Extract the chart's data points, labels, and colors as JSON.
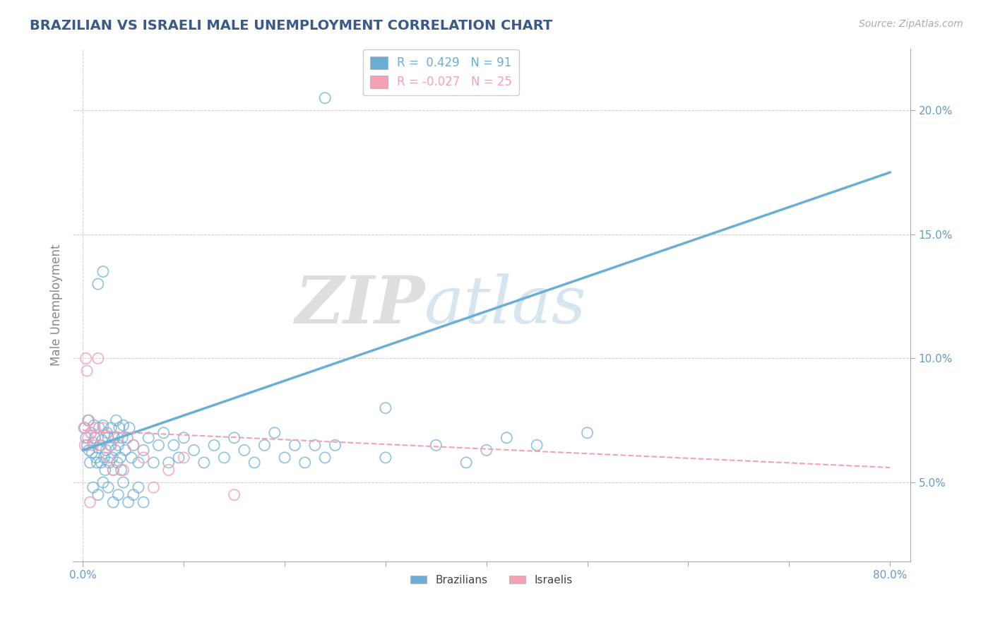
{
  "title": "BRAZILIAN VS ISRAELI MALE UNEMPLOYMENT CORRELATION CHART",
  "source_text": "Source: ZipAtlas.com",
  "ylabel": "Male Unemployment",
  "xlim": [
    -0.01,
    0.82
  ],
  "ylim": [
    0.018,
    0.225
  ],
  "xticks": [
    0.0,
    0.1,
    0.2,
    0.3,
    0.4,
    0.5,
    0.6,
    0.7,
    0.8
  ],
  "yticks": [
    0.05,
    0.1,
    0.15,
    0.2
  ],
  "yticklabels": [
    "5.0%",
    "10.0%",
    "15.0%",
    "20.0%"
  ],
  "brazil_color": "#6aaed6",
  "israel_color": "#f4a0b5",
  "brazil_R": 0.429,
  "brazil_N": 91,
  "israel_R": -0.027,
  "israel_N": 25,
  "brazil_trend_x": [
    0.0,
    0.8
  ],
  "brazil_trend_y": [
    0.063,
    0.175
  ],
  "israel_trend_x": [
    0.0,
    0.8
  ],
  "israel_trend_y": [
    0.071,
    0.056
  ],
  "watermark_zip": "ZIP",
  "watermark_atlas": "atlas",
  "background_color": "#ffffff",
  "grid_color": "#cccccc",
  "title_color": "#3a5a8c",
  "axis_label_color": "#888888",
  "tick_label_color": "#6699cc",
  "brazil_points": [
    [
      0.002,
      0.072
    ],
    [
      0.003,
      0.068
    ],
    [
      0.004,
      0.065
    ],
    [
      0.005,
      0.075
    ],
    [
      0.006,
      0.063
    ],
    [
      0.007,
      0.058
    ],
    [
      0.008,
      0.07
    ],
    [
      0.009,
      0.062
    ],
    [
      0.01,
      0.066
    ],
    [
      0.011,
      0.073
    ],
    [
      0.012,
      0.068
    ],
    [
      0.013,
      0.06
    ],
    [
      0.014,
      0.058
    ],
    [
      0.015,
      0.064
    ],
    [
      0.016,
      0.072
    ],
    [
      0.017,
      0.065
    ],
    [
      0.018,
      0.058
    ],
    [
      0.019,
      0.067
    ],
    [
      0.02,
      0.073
    ],
    [
      0.021,
      0.06
    ],
    [
      0.022,
      0.055
    ],
    [
      0.023,
      0.063
    ],
    [
      0.024,
      0.07
    ],
    [
      0.025,
      0.068
    ],
    [
      0.026,
      0.058
    ],
    [
      0.027,
      0.065
    ],
    [
      0.028,
      0.072
    ],
    [
      0.029,
      0.06
    ],
    [
      0.03,
      0.055
    ],
    [
      0.031,
      0.068
    ],
    [
      0.032,
      0.063
    ],
    [
      0.033,
      0.075
    ],
    [
      0.034,
      0.058
    ],
    [
      0.035,
      0.065
    ],
    [
      0.036,
      0.072
    ],
    [
      0.037,
      0.06
    ],
    [
      0.038,
      0.055
    ],
    [
      0.039,
      0.068
    ],
    [
      0.04,
      0.073
    ],
    [
      0.042,
      0.063
    ],
    [
      0.044,
      0.068
    ],
    [
      0.046,
      0.072
    ],
    [
      0.048,
      0.06
    ],
    [
      0.05,
      0.065
    ],
    [
      0.055,
      0.058
    ],
    [
      0.06,
      0.063
    ],
    [
      0.065,
      0.068
    ],
    [
      0.07,
      0.058
    ],
    [
      0.075,
      0.065
    ],
    [
      0.08,
      0.07
    ],
    [
      0.085,
      0.058
    ],
    [
      0.09,
      0.065
    ],
    [
      0.095,
      0.06
    ],
    [
      0.1,
      0.068
    ],
    [
      0.11,
      0.063
    ],
    [
      0.12,
      0.058
    ],
    [
      0.13,
      0.065
    ],
    [
      0.14,
      0.06
    ],
    [
      0.15,
      0.068
    ],
    [
      0.16,
      0.063
    ],
    [
      0.17,
      0.058
    ],
    [
      0.18,
      0.065
    ],
    [
      0.19,
      0.07
    ],
    [
      0.2,
      0.06
    ],
    [
      0.21,
      0.065
    ],
    [
      0.22,
      0.058
    ],
    [
      0.23,
      0.065
    ],
    [
      0.24,
      0.06
    ],
    [
      0.25,
      0.065
    ],
    [
      0.3,
      0.06
    ],
    [
      0.35,
      0.065
    ],
    [
      0.38,
      0.058
    ],
    [
      0.4,
      0.063
    ],
    [
      0.42,
      0.068
    ],
    [
      0.45,
      0.065
    ],
    [
      0.015,
      0.13
    ],
    [
      0.02,
      0.135
    ],
    [
      0.01,
      0.048
    ],
    [
      0.015,
      0.045
    ],
    [
      0.02,
      0.05
    ],
    [
      0.025,
      0.048
    ],
    [
      0.03,
      0.042
    ],
    [
      0.035,
      0.045
    ],
    [
      0.04,
      0.05
    ],
    [
      0.045,
      0.042
    ],
    [
      0.05,
      0.045
    ],
    [
      0.055,
      0.048
    ],
    [
      0.06,
      0.042
    ],
    [
      0.5,
      0.07
    ],
    [
      0.3,
      0.08
    ],
    [
      0.24,
      0.205
    ]
  ],
  "israel_points": [
    [
      0.001,
      0.072
    ],
    [
      0.002,
      0.065
    ],
    [
      0.003,
      0.1
    ],
    [
      0.004,
      0.095
    ],
    [
      0.005,
      0.068
    ],
    [
      0.006,
      0.075
    ],
    [
      0.008,
      0.07
    ],
    [
      0.01,
      0.065
    ],
    [
      0.012,
      0.072
    ],
    [
      0.015,
      0.1
    ],
    [
      0.018,
      0.065
    ],
    [
      0.02,
      0.072
    ],
    [
      0.022,
      0.068
    ],
    [
      0.025,
      0.06
    ],
    [
      0.028,
      0.065
    ],
    [
      0.03,
      0.055
    ],
    [
      0.035,
      0.068
    ],
    [
      0.04,
      0.055
    ],
    [
      0.05,
      0.065
    ],
    [
      0.06,
      0.06
    ],
    [
      0.07,
      0.048
    ],
    [
      0.085,
      0.055
    ],
    [
      0.1,
      0.06
    ],
    [
      0.15,
      0.045
    ],
    [
      0.007,
      0.042
    ]
  ]
}
